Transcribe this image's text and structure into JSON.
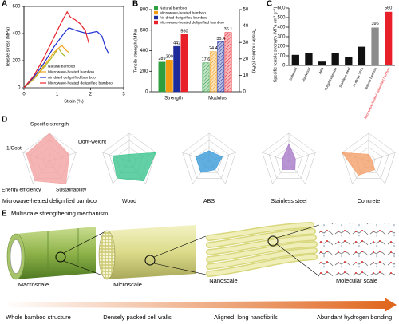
{
  "panel_labels": [
    "A",
    "B",
    "C",
    "D",
    "E"
  ],
  "chart_data": [
    {
      "type": "line",
      "xlabel": "Strain (%)",
      "ylabel": "Tensile stress (MPa)",
      "xlim": [
        0,
        3
      ],
      "xticks": [
        0,
        1,
        2,
        3
      ],
      "ylim": [
        0,
        600
      ],
      "yticks": [
        0,
        200,
        400,
        600
      ],
      "legend": "lower right",
      "series": [
        {
          "name": "Natural bamboo",
          "color": "#a9b82a",
          "x": [
            0,
            0.3,
            0.6,
            0.9,
            1.0,
            1.05,
            1.15,
            1.25
          ],
          "values": [
            0,
            65,
            150,
            240,
            280,
            289,
            250,
            230
          ]
        },
        {
          "name": "Microwave-heated bamboo",
          "color": "#f5a623",
          "x": [
            0,
            0.3,
            0.6,
            0.9,
            1.1,
            1.15,
            1.25,
            1.35
          ],
          "values": [
            0,
            70,
            160,
            260,
            305,
            309,
            280,
            260
          ]
        },
        {
          "name": "Air-dried delignified bamboo",
          "color": "#1f2fd0",
          "x": [
            0,
            0.3,
            0.6,
            0.9,
            1.2,
            1.35,
            1.6,
            1.9,
            2.2,
            2.35,
            2.45,
            2.55
          ],
          "values": [
            0,
            80,
            180,
            300,
            400,
            442,
            420,
            400,
            415,
            380,
            300,
            250
          ]
        },
        {
          "name": "Microwave-heated delignified bamboo",
          "color": "#e8202a",
          "x": [
            0,
            0.3,
            0.6,
            0.9,
            1.1,
            1.3,
            1.4,
            1.55,
            1.7,
            1.85,
            1.95
          ],
          "values": [
            0,
            90,
            220,
            370,
            470,
            560,
            520,
            500,
            470,
            420,
            330
          ]
        }
      ]
    },
    {
      "type": "bar",
      "ylabel": "Tensile strength (MPa)",
      "y2label": "Tensile modulus (GPa)",
      "categories": [
        "Strength",
        "Modulus"
      ],
      "category_axis": [
        "y",
        "y2"
      ],
      "ylim": [
        0,
        800
      ],
      "yticks": [
        0,
        200,
        400,
        600,
        800
      ],
      "y2lim": [
        0,
        50
      ],
      "y2ticks": [
        0,
        10,
        20,
        30,
        40,
        50
      ],
      "legend": "upper left",
      "series": [
        {
          "name": "Natural bamboo",
          "color": "#2e9e3e",
          "values": [
            289,
            17.6
          ]
        },
        {
          "name": "Microwave-heated bamboo",
          "color": "#f39c12",
          "values": [
            309,
            24.4
          ]
        },
        {
          "name": "Air-dried delignified bamboo",
          "color": "#1c2a9c",
          "values": [
            442,
            30.4
          ]
        },
        {
          "name": "Microwave-heated delignified bamboo",
          "color": "#e8202a",
          "values": [
            560,
            36.1
          ]
        }
      ]
    },
    {
      "type": "bar",
      "ylabel": "Specific tensile strength (MPa cm³ g⁻¹)",
      "categories": [
        "Softwood",
        "Hardwood",
        "ABS",
        "Polyphthalamide",
        "Stainless steel",
        "Al alloys 7075",
        "Natural bamboo",
        "Microwave-heated delignified bamboo"
      ],
      "values": [
        110,
        125,
        40,
        130,
        85,
        195,
        396,
        560
      ],
      "value_labels": [
        null,
        null,
        null,
        null,
        null,
        null,
        "396",
        "560"
      ],
      "colors": [
        "#111111",
        "#111111",
        "#111111",
        "#111111",
        "#111111",
        "#111111",
        "#8c8c8c",
        "#e8202a"
      ],
      "label_colors": [
        "#000000",
        "#000000",
        "#000000",
        "#000000",
        "#000000",
        "#000000",
        "#000000",
        "#e8202a"
      ],
      "ylim": [
        0,
        600
      ],
      "yticks": [
        0,
        100,
        200,
        300,
        400,
        500,
        600
      ]
    },
    {
      "type": "radar",
      "categories": [
        "Specific strength",
        "Light-weight",
        "Sustainability",
        "Energy efficiency",
        "1/Cost"
      ],
      "rlim": [
        0,
        4
      ],
      "rticks": [
        1,
        2,
        3,
        4
      ],
      "series": [
        {
          "name": "Microwave-heated delignified bamboo",
          "color": "#f4a3a3",
          "values": [
            4,
            3,
            4,
            3.5,
            3.5
          ]
        },
        {
          "name": "Wood",
          "color": "#3cc48e",
          "values": [
            1,
            4,
            3.5,
            3,
            2.5
          ]
        },
        {
          "name": "ABS",
          "color": "#3a9ad9",
          "values": [
            1.5,
            2,
            1.5,
            2,
            2
          ]
        },
        {
          "name": "Stainless steel",
          "color": "#a77bc9",
          "values": [
            2.5,
            1,
            1.5,
            1.5,
            1
          ]
        },
        {
          "name": "Concrete",
          "color": "#f4a06a",
          "values": [
            1,
            0.5,
            1.5,
            2.5,
            4
          ]
        }
      ]
    }
  ],
  "illustration": {
    "title": "Multiscale strengthening mechanism",
    "scales": [
      "Macroscale",
      "Microscale",
      "Nanoscale",
      "Molecular scale"
    ],
    "descriptions": [
      "Whole bamboo structure",
      "Densely packed cell walls",
      "Aligned, long nanofibrils",
      "Abundant hydrogen bonding"
    ]
  }
}
